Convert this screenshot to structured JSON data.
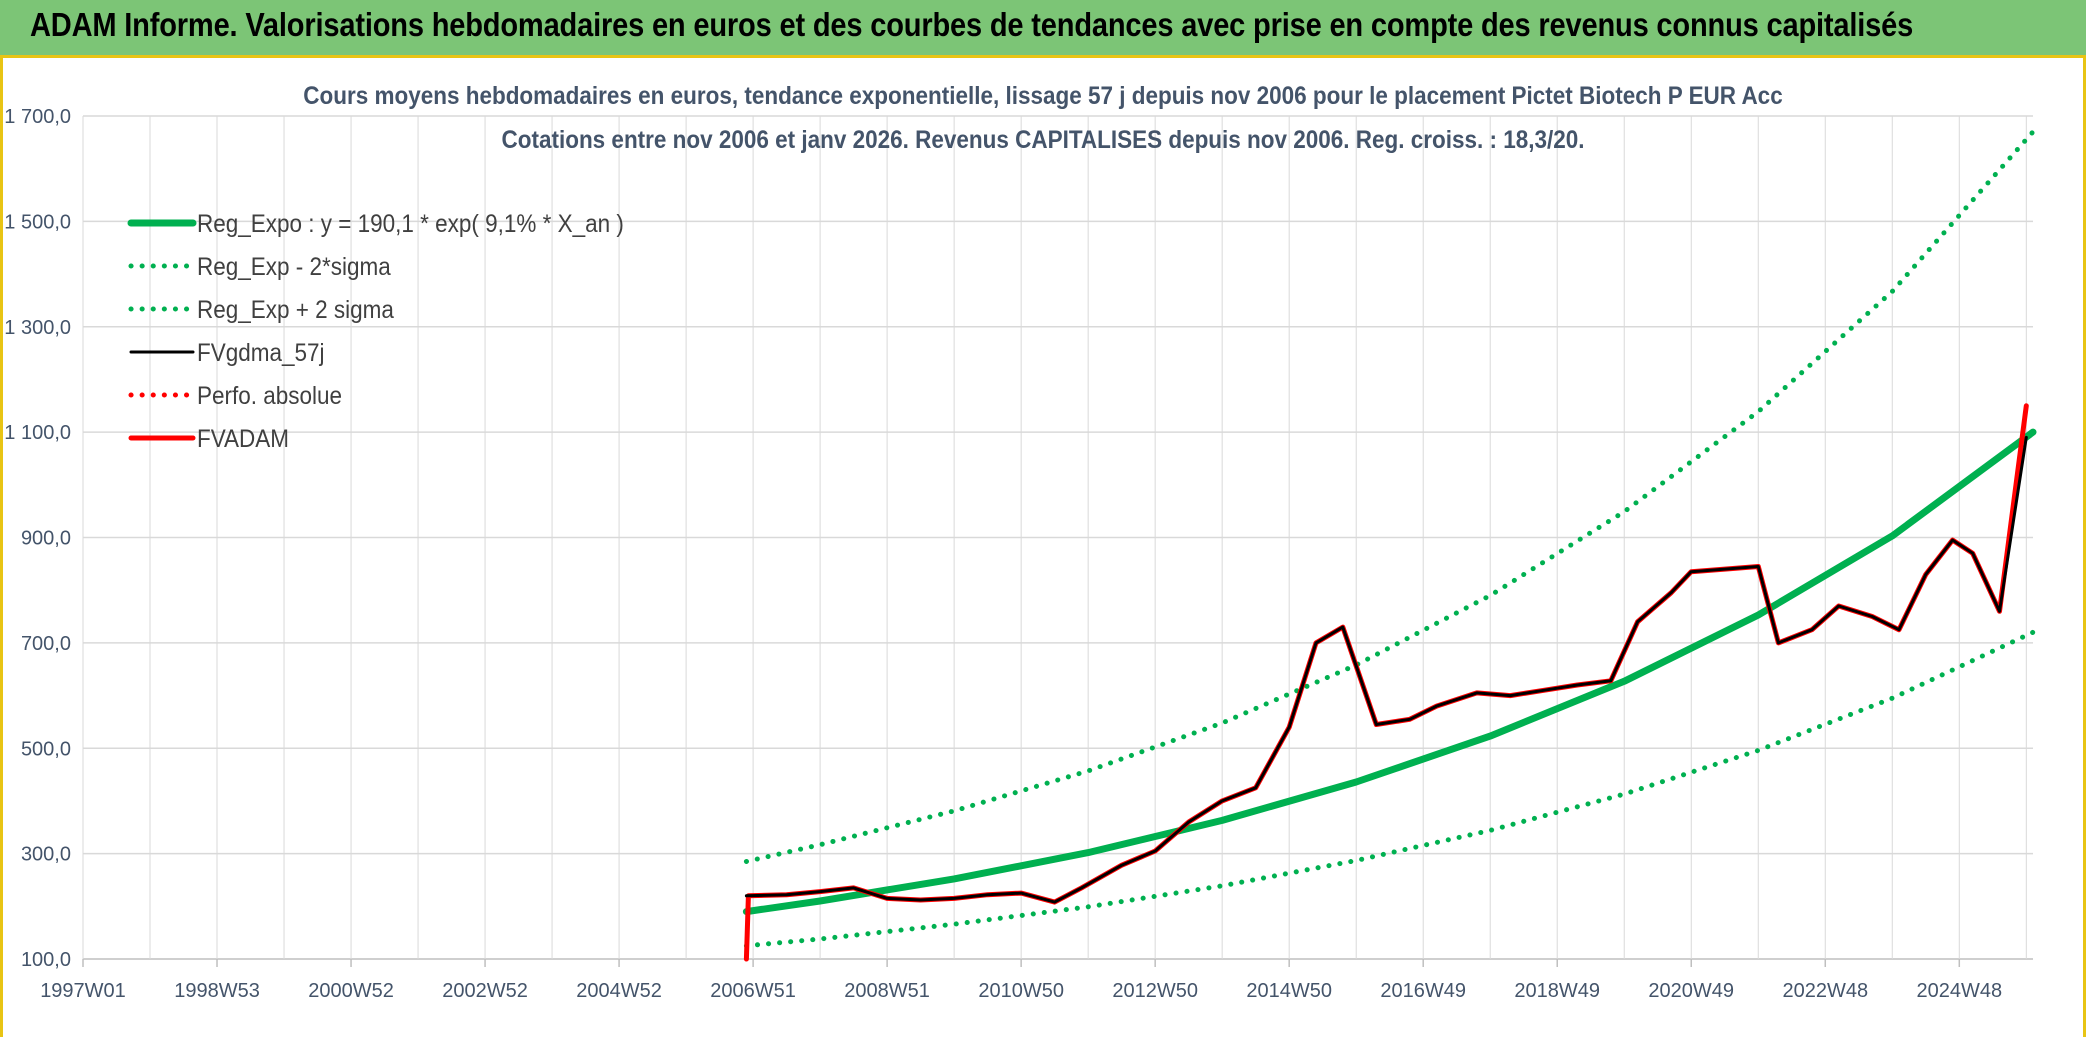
{
  "header": {
    "title": "ADAM Informe. Valorisations hebdomadaires en euros et des courbes de tendances avec prise en compte des revenus connus capitalisés"
  },
  "colors": {
    "banner": "#7cc576",
    "frame": "#e8c414",
    "trend": "#00b050",
    "fv_gdma": "#000000",
    "fvadam": "#ff0000",
    "grid": "#d9d9d9",
    "text": "#44546a"
  },
  "chart_data": {
    "type": "line",
    "title": "Cours moyens hebdomadaires en euros, tendance exponentielle, lissage 57 j depuis nov 2006 pour le placement Pictet Biotech P EUR Acc",
    "subtitle": "Cotations entre nov 2006 et janv 2026. Revenus CAPITALISES depuis nov 2006. Reg. croiss. : 18,3/20.",
    "xlabel": "",
    "ylabel": "",
    "x_tick_labels": [
      "1997W01",
      "1998W53",
      "2000W52",
      "2002W52",
      "2004W52",
      "2006W51",
      "2008W51",
      "2010W50",
      "2012W50",
      "2014W50",
      "2016W49",
      "2018W49",
      "2020W49",
      "2022W48",
      "2024W48"
    ],
    "x_tick_years": [
      1997.0,
      1999.0,
      2001.0,
      2003.0,
      2005.0,
      2007.0,
      2009.0,
      2011.0,
      2013.0,
      2015.0,
      2017.0,
      2019.0,
      2021.0,
      2023.0,
      2025.0
    ],
    "y_tick_labels": [
      "100,0",
      "300,0",
      "500,0",
      "700,0",
      "900,0",
      "1 100,0",
      "1 300,0",
      "1 500,0",
      "1 700,0"
    ],
    "y_tick_values": [
      100,
      300,
      500,
      700,
      900,
      1100,
      1300,
      1500,
      1700
    ],
    "xlim": [
      1997.0,
      2026.1
    ],
    "ylim": [
      100,
      1700
    ],
    "grid": true,
    "legend_position": "top-left",
    "series": [
      {
        "name": "Reg_Expo : y = 190,1 * exp( 9,1% *  X_an )",
        "style": "solid-thick",
        "color": "#00b050",
        "x": [
          2006.9,
          2008,
          2010,
          2012,
          2014,
          2016,
          2018,
          2020,
          2022,
          2024,
          2026.1
        ],
        "y": [
          190,
          210,
          252,
          302,
          363,
          436,
          523,
          627,
          753,
          903,
          1100
        ]
      },
      {
        "name": "Reg_Exp - 2*sigma",
        "style": "dotted",
        "color": "#00b050",
        "x": [
          2006.9,
          2008,
          2010,
          2012,
          2014,
          2016,
          2018,
          2020,
          2022,
          2024,
          2026.1
        ],
        "y": [
          125,
          138,
          166,
          199,
          239,
          287,
          344,
          413,
          496,
          595,
          720
        ]
      },
      {
        "name": "Reg_Exp + 2 sigma",
        "style": "dotted",
        "color": "#00b050",
        "x": [
          2006.9,
          2008,
          2010,
          2012,
          2014,
          2016,
          2018,
          2020,
          2022,
          2024,
          2026.1
        ],
        "y": [
          285,
          317,
          381,
          457,
          548,
          658,
          790,
          949,
          1139,
          1367,
          1670
        ]
      },
      {
        "name": "FVgdma_57j",
        "style": "solid",
        "color": "#000000",
        "x": [
          2006.9,
          2007.5,
          2008.0,
          2008.5,
          2009.0,
          2009.5,
          2010.0,
          2010.5,
          2011.0,
          2011.5,
          2011.9,
          2012.5,
          2013.0,
          2013.5,
          2014.0,
          2014.5,
          2015.0,
          2015.4,
          2015.8,
          2016.3,
          2016.8,
          2017.2,
          2017.8,
          2018.3,
          2018.8,
          2019.3,
          2019.8,
          2020.2,
          2020.7,
          2021.0,
          2021.5,
          2022.0,
          2022.3,
          2022.8,
          2023.2,
          2023.7,
          2024.1,
          2024.5,
          2024.9,
          2025.2,
          2025.6,
          2026.0
        ],
        "y": [
          220,
          222,
          228,
          235,
          215,
          212,
          215,
          222,
          225,
          208,
          235,
          278,
          305,
          360,
          400,
          425,
          540,
          700,
          730,
          545,
          555,
          580,
          605,
          600,
          610,
          620,
          628,
          740,
          795,
          835,
          840,
          845,
          700,
          725,
          770,
          750,
          725,
          830,
          895,
          870,
          760,
          1090
        ]
      },
      {
        "name": "Perfo. absolue",
        "style": "dotted",
        "color": "#ff0000",
        "x": [],
        "y": []
      },
      {
        "name": "FVADAM",
        "style": "solid-thick",
        "color": "#ff0000",
        "x": [
          2006.9,
          2006.93,
          2007.5,
          2008.0,
          2008.5,
          2009.0,
          2009.5,
          2010.0,
          2010.5,
          2011.0,
          2011.5,
          2011.9,
          2012.5,
          2013.0,
          2013.5,
          2014.0,
          2014.5,
          2015.0,
          2015.4,
          2015.8,
          2016.3,
          2016.8,
          2017.2,
          2017.8,
          2018.3,
          2018.8,
          2019.3,
          2019.8,
          2020.2,
          2020.7,
          2021.0,
          2021.5,
          2022.0,
          2022.3,
          2022.8,
          2023.2,
          2023.7,
          2024.1,
          2024.5,
          2024.9,
          2025.2,
          2025.6,
          2026.0
        ],
        "y": [
          100,
          220,
          222,
          228,
          235,
          215,
          212,
          215,
          222,
          225,
          208,
          235,
          278,
          305,
          360,
          400,
          425,
          540,
          700,
          730,
          545,
          555,
          580,
          605,
          600,
          610,
          620,
          628,
          740,
          795,
          835,
          840,
          845,
          700,
          725,
          770,
          750,
          725,
          830,
          895,
          870,
          760,
          1150
        ]
      }
    ]
  }
}
